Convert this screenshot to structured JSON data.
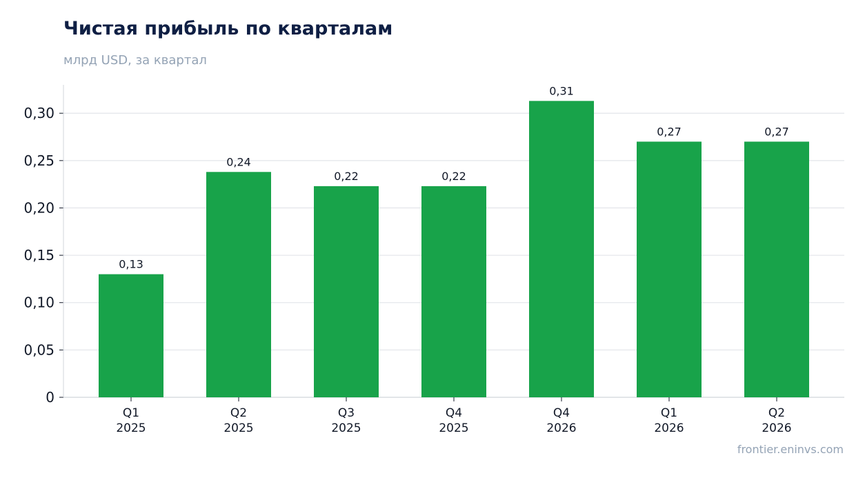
{
  "header": {
    "title": "Чистая прибыль по кварталам",
    "subtitle": "млрд USD, за квартал"
  },
  "footer": {
    "source": "frontier.eninvs.com"
  },
  "chart_data": {
    "type": "bar",
    "title": "Чистая прибыль по кварталам",
    "subtitle": "млрд USD, за квартал",
    "categories": [
      [
        "Q1",
        "2025"
      ],
      [
        "Q2",
        "2025"
      ],
      [
        "Q3",
        "2025"
      ],
      [
        "Q4",
        "2025"
      ],
      [
        "Q4",
        "2026"
      ],
      [
        "Q1",
        "2026"
      ],
      [
        "Q2",
        "2026"
      ]
    ],
    "values": [
      0.13,
      0.238,
      0.223,
      0.223,
      0.313,
      0.27,
      0.27
    ],
    "data_labels": [
      "0,13",
      "0,24",
      "0,22",
      "0,22",
      "0,31",
      "0,27",
      "0,27"
    ],
    "ylim": [
      0,
      0.33
    ],
    "yticks": [
      0,
      0.05,
      0.1,
      0.15,
      0.2,
      0.25,
      0.3
    ],
    "ytick_labels": [
      "0",
      "0,05",
      "0,10",
      "0,15",
      "0,20",
      "0,25",
      "0,30"
    ],
    "grid": true,
    "bar_color": "#18a34a",
    "grid_color": "#e5e7eb",
    "axis_color": "#d1d5db"
  }
}
